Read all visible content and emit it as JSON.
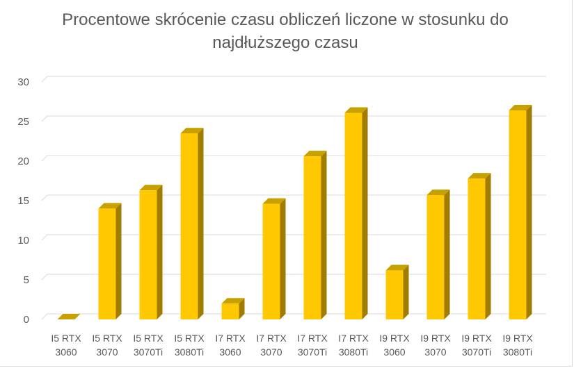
{
  "chart_data": {
    "type": "bar",
    "title": "Procentowe skrócenie czasu obliczeń liczone w stosunku do najdłuższego czasu",
    "title_lines": [
      "Procentowe skrócenie czasu obliczeń liczone w stosunku do",
      "najdłuższego czasu"
    ],
    "xlabel": "",
    "ylabel": "",
    "ylim": [
      0,
      30
    ],
    "yticks": [
      0,
      5,
      10,
      15,
      20,
      25,
      30
    ],
    "grid": true,
    "legend": "none",
    "bar_style": "3d",
    "colors": {
      "bar_front": "#ffc800",
      "bar_side": "#a07d00",
      "bar_top": "#c8a000",
      "grid": "#d9d9d9",
      "text": "#595959"
    },
    "categories": [
      [
        "I5 RTX",
        "3060"
      ],
      [
        "I5 RTX",
        "3070"
      ],
      [
        "I5 RTX",
        "3070Ti"
      ],
      [
        "I5 RTX",
        "3080Ti"
      ],
      [
        "I7 RTX",
        "3060"
      ],
      [
        "I7 RTX",
        "3070"
      ],
      [
        "I7 RTX",
        "3070Ti"
      ],
      [
        "I7 RTX",
        "3080Ti"
      ],
      [
        "I9 RTX",
        "3060"
      ],
      [
        "I9 RTX",
        "3070"
      ],
      [
        "I9 RTX",
        "3070Ti"
      ],
      [
        "I9 RTX",
        "3080Ti"
      ]
    ],
    "values": [
      0,
      14,
      16.3,
      23.5,
      2,
      14.6,
      20.6,
      26.1,
      6.2,
      15.7,
      17.8,
      26.4
    ]
  }
}
